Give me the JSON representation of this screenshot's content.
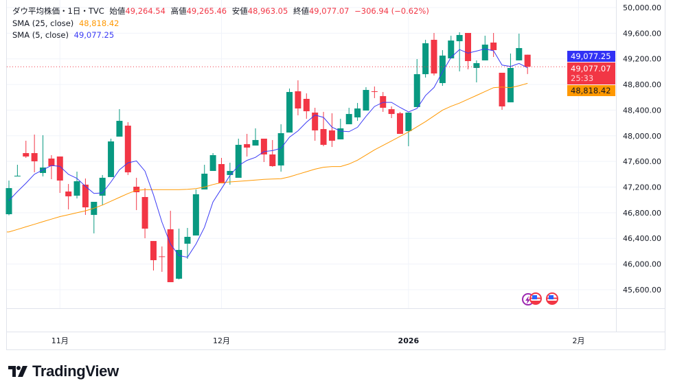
{
  "header": {
    "symbol": "ダウ平均株価・1日・TVC",
    "open_label": "始値",
    "open": "49,264.54",
    "high_label": "高値",
    "high": "49,265.46",
    "low_label": "安値",
    "low": "48,963.05",
    "close_label": "終値",
    "close": "49,077.07",
    "change": "−306.94 (−0.62%)"
  },
  "indicators": [
    {
      "label": "SMA (25, close)",
      "value": "48,818.42",
      "color": "#ff9800"
    },
    {
      "label": "SMA (5, close)",
      "value": "49,077.25",
      "color": "#2962ff"
    }
  ],
  "price_tags": {
    "sma5": "49,077.25",
    "last": "49,077.07",
    "countdown": "25:33",
    "sma25": "48,818.42"
  },
  "colors": {
    "up": "#089981",
    "down": "#f23645",
    "sma5": "#3b3bf5",
    "sma25": "#ff9800"
  },
  "brand": "TradingView",
  "chart_data": {
    "type": "candlestick",
    "ylim": [
      45400,
      50000
    ],
    "y_ticks": [
      "45,600.00",
      "46,000.00",
      "46,400.00",
      "46,800.00",
      "47,200.00",
      "47,600.00",
      "48,000.00",
      "48,400.00",
      "48,800.00",
      "49,200.00",
      "49,600.00",
      "50,000.00"
    ],
    "y_tick_values": [
      45600,
      46000,
      46400,
      46800,
      47200,
      47600,
      48000,
      48400,
      48800,
      49200,
      49600,
      50000
    ],
    "x_ticks": [
      {
        "label": "11月",
        "index": 6
      },
      {
        "label": "12月",
        "index": 25
      },
      {
        "label": "2026",
        "index": 47,
        "bold": true
      },
      {
        "label": "2月",
        "index": 67
      }
    ],
    "last_price": 49077.07,
    "ohlc": [
      [
        46777,
        47302,
        46760,
        47184
      ],
      [
        47366,
        47548,
        47366,
        47377
      ],
      [
        47730,
        47923,
        47655,
        47677
      ],
      [
        47730,
        48019,
        47430,
        47602
      ],
      [
        47420,
        48009,
        47366,
        47505
      ],
      [
        47645,
        47698,
        47323,
        47527
      ],
      [
        47677,
        47677,
        47109,
        47302
      ],
      [
        47131,
        47248,
        46852,
        47056
      ],
      [
        47066,
        47441,
        47023,
        47291
      ],
      [
        47238,
        47334,
        46766,
        46884
      ],
      [
        46766,
        46970,
        46478,
        46970
      ],
      [
        47066,
        47388,
        46916,
        47345
      ],
      [
        47356,
        47955,
        47356,
        47912
      ],
      [
        47987,
        48416,
        47987,
        48233
      ],
      [
        48158,
        48212,
        47388,
        47430
      ],
      [
        47206,
        47345,
        46841,
        47120
      ],
      [
        47045,
        47184,
        46402,
        46552
      ],
      [
        46359,
        46359,
        45899,
        46060
      ],
      [
        46120,
        46274,
        45878,
        46110
      ],
      [
        46542,
        46831,
        45717,
        45717
      ],
      [
        45771,
        46552,
        45760,
        46220
      ],
      [
        46317,
        46563,
        46081,
        46424
      ],
      [
        46445,
        47163,
        46445,
        47088
      ],
      [
        47163,
        47548,
        47163,
        47409
      ],
      [
        47452,
        47730,
        47452,
        47698
      ],
      [
        47559,
        47655,
        47259,
        47259
      ],
      [
        47388,
        47580,
        47238,
        47452
      ],
      [
        47345,
        47955,
        47345,
        47859
      ],
      [
        47870,
        48030,
        47677,
        47816
      ],
      [
        47848,
        48116,
        47848,
        47934
      ],
      [
        47955,
        47955,
        47591,
        47709
      ],
      [
        47709,
        47934,
        47516,
        47527
      ],
      [
        47537,
        48180,
        47441,
        48041
      ],
      [
        48051,
        48737,
        48051,
        48683
      ],
      [
        48694,
        48865,
        48319,
        48426
      ],
      [
        48576,
        48662,
        48265,
        48383
      ],
      [
        48362,
        48437,
        47923,
        48084
      ],
      [
        48105,
        48373,
        47837,
        47859
      ],
      [
        48084,
        48351,
        47826,
        47923
      ],
      [
        47944,
        48265,
        47944,
        48116
      ],
      [
        48180,
        48437,
        48180,
        48340
      ],
      [
        48287,
        48512,
        48233,
        48426
      ],
      [
        48394,
        48758,
        48394,
        48715
      ],
      [
        48694,
        48769,
        48587,
        48690
      ],
      [
        48619,
        48683,
        48373,
        48437
      ],
      [
        48415,
        48458,
        48276,
        48340
      ],
      [
        48351,
        48373,
        48030,
        48030
      ],
      [
        48073,
        48362,
        47837,
        48362
      ],
      [
        48448,
        49197,
        48448,
        48961
      ],
      [
        48961,
        49497,
        48908,
        49443
      ],
      [
        49497,
        49604,
        48940,
        48972
      ],
      [
        48822,
        49336,
        48779,
        49251
      ],
      [
        49208,
        49561,
        49208,
        49486
      ],
      [
        49475,
        49615,
        49004,
        49572
      ],
      [
        49604,
        49604,
        49036,
        49165
      ],
      [
        49058,
        49176,
        48833,
        49133
      ],
      [
        49176,
        49561,
        49176,
        49422
      ],
      [
        49454,
        49604,
        49229,
        49336
      ],
      [
        48983,
        48983,
        48405,
        48458
      ],
      [
        48522,
        49283,
        48522,
        49058
      ],
      [
        49176,
        49593,
        49176,
        49368
      ],
      [
        49264.54,
        49265.46,
        48963.05,
        49077.07
      ]
    ],
    "sma5_seed": [
      46990,
      47130,
      47260,
      47400
    ],
    "sma25": [
      46500,
      46540,
      46580,
      46620,
      46660,
      46700,
      46740,
      46770,
      46800,
      46830,
      46870,
      46920,
      46980,
      47040,
      47100,
      47150,
      47160,
      47160,
      47160,
      47160,
      47160,
      47165,
      47175,
      47200,
      47240,
      47270,
      47280,
      47290,
      47300,
      47310,
      47320,
      47325,
      47330,
      47360,
      47400,
      47440,
      47480,
      47510,
      47520,
      47520,
      47560,
      47620,
      47700,
      47780,
      47850,
      47920,
      47990,
      48060,
      48140,
      48220,
      48310,
      48400,
      48460,
      48510,
      48570,
      48630,
      48690,
      48750,
      48760,
      48750,
      48780,
      48818.42
    ]
  }
}
